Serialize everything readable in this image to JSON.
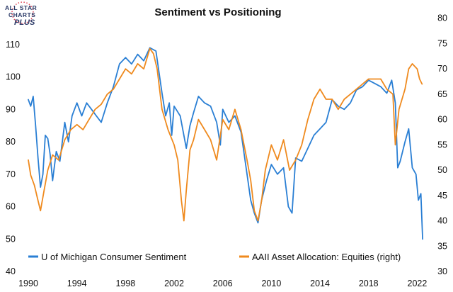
{
  "logo": {
    "line1": "ALL STAR",
    "line2": "CHARTS",
    "line3": "PLUS"
  },
  "chart_data": {
    "type": "line",
    "title": "Sentiment vs Positioning",
    "xlim": [
      1990,
      2022.5
    ],
    "ylim_left": [
      40,
      115
    ],
    "ylim_right": [
      30,
      78
    ],
    "x_ticks": [
      "1990",
      "1994",
      "1998",
      "2002",
      "2006",
      "2010",
      "2014",
      "2018",
      "2022"
    ],
    "x_tick_values": [
      1990,
      1994,
      1998,
      2002,
      2006,
      2010,
      2014,
      2018,
      2022
    ],
    "y_left_ticks": [
      "40",
      "50",
      "60",
      "70",
      "80",
      "90",
      "100",
      "110"
    ],
    "y_left_tick_values": [
      40,
      50,
      60,
      70,
      80,
      90,
      100,
      110
    ],
    "y_right_ticks": [
      "30",
      "35",
      "40",
      "45",
      "50",
      "55",
      "60",
      "65",
      "70",
      "75",
      "80"
    ],
    "y_right_tick_values": [
      30,
      35,
      40,
      45,
      50,
      55,
      60,
      65,
      70,
      75,
      80
    ],
    "series": [
      {
        "name": "U of Michigan Consumer Sentiment",
        "axis": "left",
        "color": "#2a7fd4",
        "x": [
          1990.0,
          1990.2,
          1990.4,
          1990.6,
          1990.8,
          1991.0,
          1991.2,
          1991.4,
          1991.6,
          1991.8,
          1992.0,
          1992.3,
          1992.6,
          1993.0,
          1993.3,
          1993.6,
          1994.0,
          1994.4,
          1994.8,
          1995.2,
          1995.6,
          1996.0,
          1996.5,
          1997.0,
          1997.5,
          1998.0,
          1998.5,
          1999.0,
          1999.5,
          2000.0,
          2000.5,
          2001.0,
          2001.3,
          2001.6,
          2001.8,
          2002.0,
          2002.5,
          2003.0,
          2003.3,
          2003.6,
          2004.0,
          2004.5,
          2005.0,
          2005.5,
          2005.8,
          2006.0,
          2006.5,
          2007.0,
          2007.5,
          2008.0,
          2008.3,
          2008.6,
          2008.9,
          2009.2,
          2009.6,
          2010.0,
          2010.5,
          2011.0,
          2011.4,
          2011.7,
          2012.0,
          2012.5,
          2013.0,
          2013.5,
          2014.0,
          2014.5,
          2015.0,
          2015.5,
          2016.0,
          2016.5,
          2017.0,
          2017.5,
          2018.0,
          2018.5,
          2019.0,
          2019.5,
          2019.9,
          2020.2,
          2020.4,
          2020.6,
          2021.0,
          2021.3,
          2021.6,
          2021.9,
          2022.1,
          2022.3,
          2022.45
        ],
        "values": [
          93,
          91,
          94,
          85,
          75,
          66,
          70,
          82,
          81,
          76,
          68,
          77,
          74,
          86,
          80,
          88,
          92,
          88,
          92,
          90,
          88,
          86,
          92,
          97,
          104,
          106,
          104,
          107,
          105,
          109,
          108,
          95,
          88,
          92,
          82,
          91,
          88,
          78,
          85,
          89,
          94,
          92,
          91,
          86,
          79,
          90,
          86,
          88,
          83,
          70,
          62,
          58,
          55,
          62,
          68,
          73,
          70,
          72,
          60,
          58,
          75,
          74,
          78,
          82,
          84,
          86,
          93,
          91,
          90,
          92,
          96,
          97,
          99,
          98,
          97,
          95,
          99,
          92,
          72,
          74,
          80,
          84,
          72,
          70,
          62,
          64,
          50
        ]
      },
      {
        "name": "AAII Asset Allocation: Equities (right)",
        "axis": "right",
        "color": "#ef8a1e",
        "x": [
          1990.0,
          1990.2,
          1990.5,
          1990.8,
          1991.0,
          1991.3,
          1991.6,
          1992.0,
          1992.5,
          1993.0,
          1993.5,
          1994.0,
          1994.5,
          1995.0,
          1995.5,
          1996.0,
          1996.5,
          1997.0,
          1997.5,
          1998.0,
          1998.5,
          1999.0,
          1999.5,
          2000.0,
          2000.3,
          2000.6,
          2001.0,
          2001.5,
          2002.0,
          2002.3,
          2002.6,
          2002.8,
          2003.0,
          2003.3,
          2003.6,
          2004.0,
          2004.5,
          2005.0,
          2005.5,
          2006.0,
          2006.5,
          2007.0,
          2007.5,
          2008.0,
          2008.3,
          2008.6,
          2008.9,
          2009.2,
          2009.5,
          2010.0,
          2010.5,
          2011.0,
          2011.5,
          2012.0,
          2012.5,
          2013.0,
          2013.5,
          2014.0,
          2014.5,
          2015.0,
          2015.5,
          2016.0,
          2016.5,
          2017.0,
          2017.5,
          2018.0,
          2018.5,
          2019.0,
          2019.5,
          2020.0,
          2020.2,
          2020.5,
          2021.0,
          2021.3,
          2021.6,
          2022.0,
          2022.2,
          2022.4
        ],
        "values": [
          52,
          49,
          47,
          44,
          42,
          46,
          50,
          53,
          52,
          56,
          58,
          59,
          58,
          60,
          62,
          63,
          65,
          66,
          68,
          70,
          69,
          71,
          70,
          74,
          73,
          70,
          62,
          58,
          55,
          52,
          44,
          40,
          46,
          54,
          56,
          60,
          58,
          56,
          52,
          60,
          58,
          62,
          58,
          52,
          48,
          42,
          40,
          44,
          50,
          55,
          52,
          56,
          50,
          52,
          55,
          60,
          64,
          66,
          64,
          64,
          62,
          64,
          65,
          66,
          67,
          68,
          68,
          68,
          66,
          65,
          55,
          62,
          66,
          70,
          71,
          70,
          68,
          67
        ]
      }
    ]
  }
}
